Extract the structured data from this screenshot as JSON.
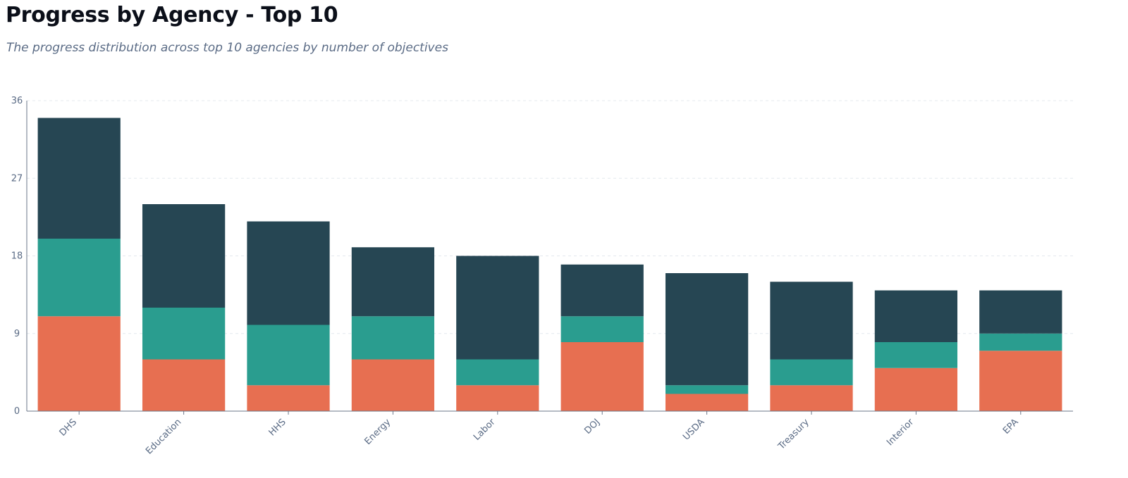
{
  "chart_data": {
    "type": "bar",
    "stacked": true,
    "title": "Progress by Agency - Top 10",
    "subtitle": "The progress distribution across top 10 agencies by number of objectives",
    "categories": [
      "DHS",
      "Education",
      "HHS",
      "Energy",
      "Labor",
      "DOJ",
      "USDA",
      "Treasury",
      "Interior",
      "EPA"
    ],
    "series": [
      {
        "color": "#e76f51",
        "values": [
          11,
          6,
          3,
          6,
          3,
          8,
          2,
          3,
          5,
          7
        ]
      },
      {
        "color": "#2a9d8f",
        "values": [
          9,
          6,
          7,
          5,
          3,
          3,
          1,
          3,
          3,
          2
        ]
      },
      {
        "color": "#264653",
        "values": [
          14,
          12,
          12,
          8,
          12,
          6,
          13,
          9,
          6,
          5
        ]
      }
    ],
    "ylim": [
      0,
      36
    ],
    "yticks": [
      0,
      9,
      18,
      27,
      36
    ],
    "grid": true,
    "legend": "none"
  }
}
